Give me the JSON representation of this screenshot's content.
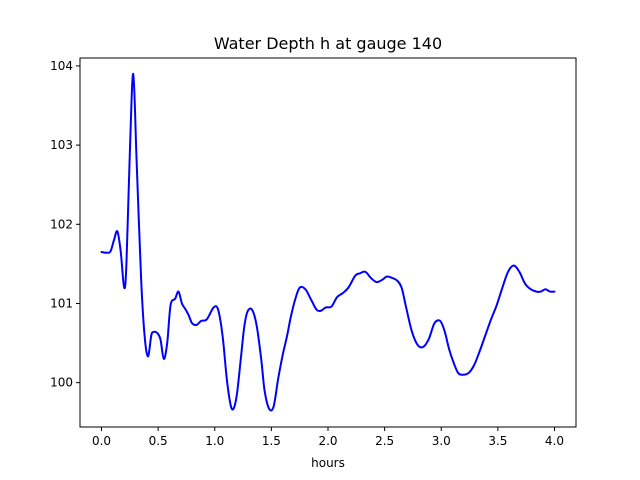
{
  "chart_data": {
    "type": "line",
    "title": "Water Depth h at gauge 140",
    "xlabel": "hours",
    "ylabel": "",
    "xlim": [
      -0.19,
      4.19
    ],
    "ylim": [
      99.44,
      104.1
    ],
    "xticks": [
      0.0,
      0.5,
      1.0,
      1.5,
      2.0,
      2.5,
      3.0,
      3.5,
      4.0
    ],
    "xtick_labels": [
      "0.0",
      "0.5",
      "1.0",
      "1.5",
      "2.0",
      "2.5",
      "3.0",
      "3.5",
      "4.0"
    ],
    "yticks": [
      100,
      101,
      102,
      103,
      104
    ],
    "ytick_labels": [
      "100",
      "101",
      "102",
      "103",
      "104"
    ],
    "grid": false,
    "series": [
      {
        "color": "#0000ff",
        "x": [
          0.0,
          0.05,
          0.08,
          0.11,
          0.14,
          0.17,
          0.2,
          0.22,
          0.25,
          0.28,
          0.31,
          0.35,
          0.38,
          0.41,
          0.44,
          0.46,
          0.49,
          0.52,
          0.55,
          0.58,
          0.61,
          0.65,
          0.68,
          0.71,
          0.74,
          0.77,
          0.8,
          0.84,
          0.88,
          0.93,
          0.99,
          1.03,
          1.07,
          1.11,
          1.15,
          1.19,
          1.23,
          1.26,
          1.29,
          1.33,
          1.37,
          1.41,
          1.44,
          1.48,
          1.52,
          1.56,
          1.6,
          1.64,
          1.67,
          1.71,
          1.75,
          1.8,
          1.85,
          1.9,
          1.94,
          1.98,
          2.03,
          2.08,
          2.13,
          2.18,
          2.24,
          2.28,
          2.33,
          2.38,
          2.43,
          2.48,
          2.52,
          2.57,
          2.61,
          2.65,
          2.69,
          2.74,
          2.79,
          2.84,
          2.89,
          2.94,
          2.99,
          3.03,
          3.07,
          3.11,
          3.15,
          3.19,
          3.24,
          3.29,
          3.34,
          3.39,
          3.44,
          3.49,
          3.54,
          3.59,
          3.64,
          3.69,
          3.74,
          3.79,
          3.84,
          3.88,
          3.92,
          3.96,
          4.0
        ],
        "y": [
          101.65,
          101.64,
          101.66,
          101.8,
          101.91,
          101.65,
          101.2,
          101.5,
          102.9,
          103.9,
          102.8,
          101.3,
          100.6,
          100.33,
          100.6,
          100.64,
          100.63,
          100.55,
          100.3,
          100.5,
          100.98,
          101.06,
          101.15,
          101.0,
          100.93,
          100.85,
          100.75,
          100.73,
          100.78,
          100.8,
          100.95,
          100.92,
          100.58,
          100.0,
          99.67,
          99.8,
          100.3,
          100.7,
          100.9,
          100.92,
          100.72,
          100.3,
          99.9,
          99.67,
          99.7,
          100.05,
          100.35,
          100.6,
          100.82,
          101.05,
          101.2,
          101.18,
          101.05,
          100.92,
          100.91,
          100.95,
          100.96,
          101.08,
          101.13,
          101.2,
          101.35,
          101.38,
          101.4,
          101.32,
          101.27,
          101.3,
          101.34,
          101.32,
          101.29,
          101.2,
          100.95,
          100.65,
          100.48,
          100.45,
          100.55,
          100.75,
          100.78,
          100.65,
          100.42,
          100.25,
          100.12,
          100.1,
          100.12,
          100.22,
          100.4,
          100.6,
          100.8,
          100.98,
          101.2,
          101.4,
          101.48,
          101.4,
          101.25,
          101.18,
          101.15,
          101.15,
          101.18,
          101.15,
          101.15
        ]
      }
    ]
  }
}
